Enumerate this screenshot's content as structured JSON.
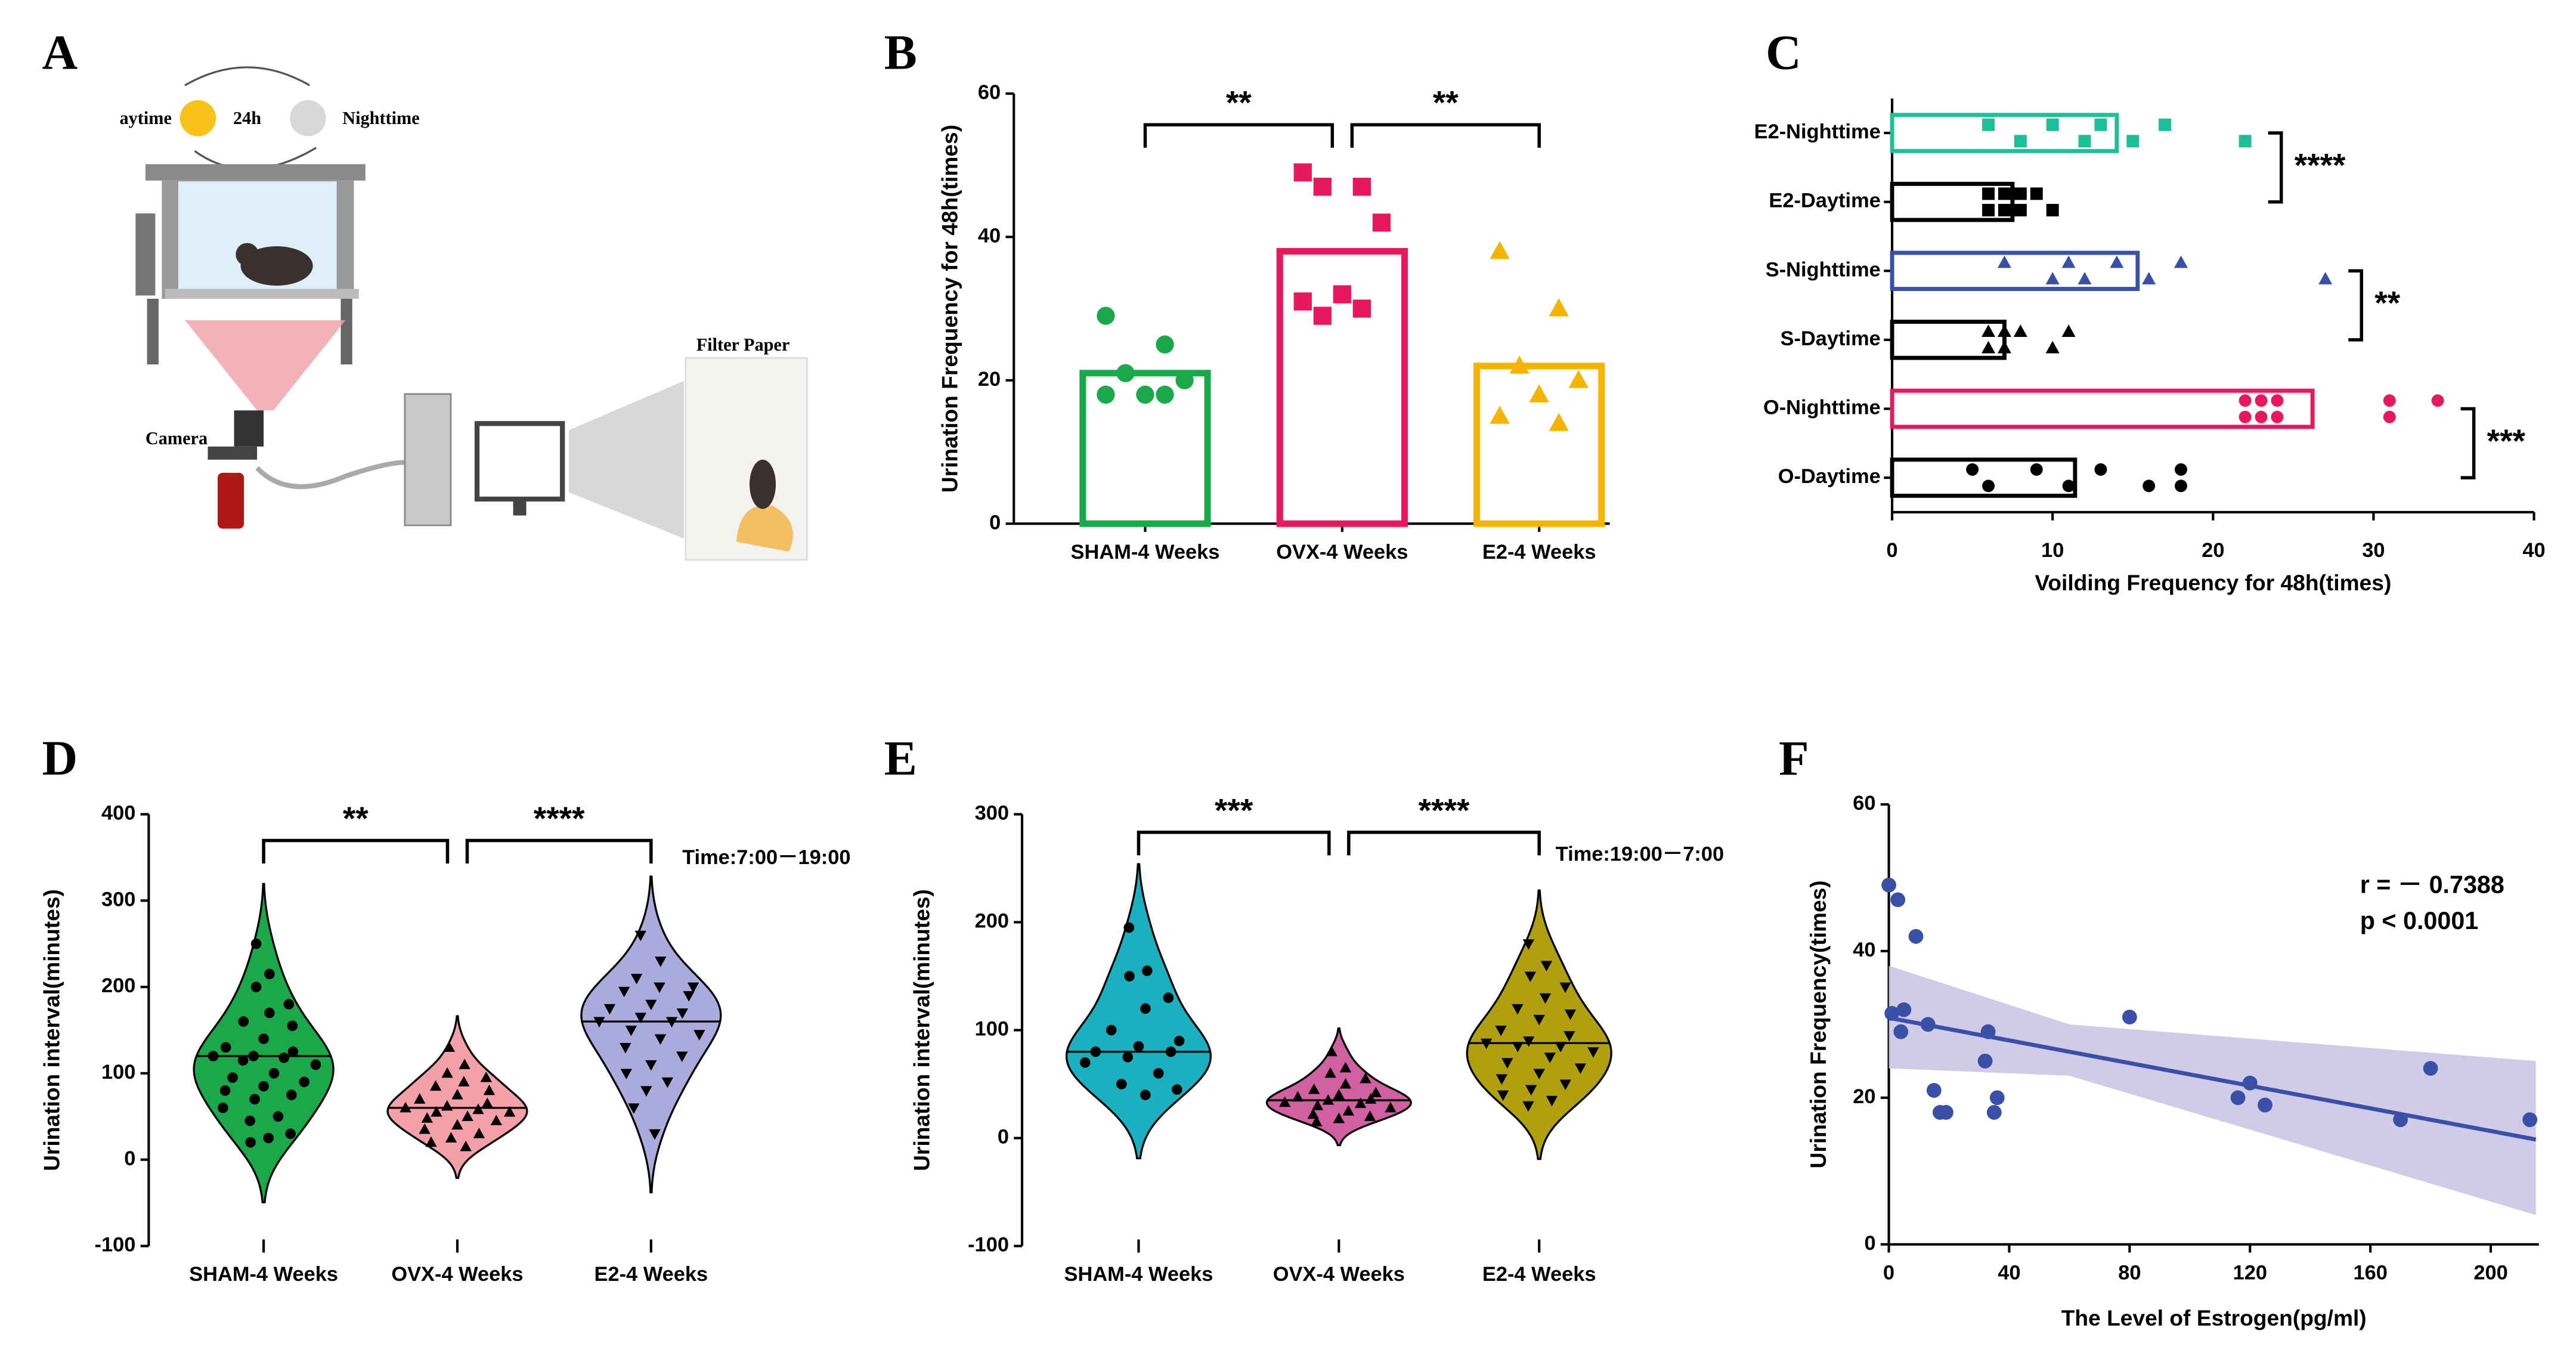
{
  "panel_labels": [
    "A",
    "B",
    "C",
    "D",
    "E",
    "F"
  ],
  "diagram": {
    "left_label": "aytime",
    "cycle": "24h",
    "right_label": "Nighttime",
    "camera": "Camera",
    "filter": "Filter Paper"
  },
  "chart_data": [
    {
      "type": "bar",
      "ylabel": "Urination Frequency for 48h(times)",
      "categories": [
        "SHAM-4 Weeks",
        "OVX-4 Weeks",
        "E2-4 Weeks"
      ],
      "values": [
        21,
        38,
        22
      ],
      "points": [
        [
          29,
          25,
          21,
          20,
          18,
          18,
          18
        ],
        [
          49,
          47,
          47,
          42,
          32,
          31,
          30,
          29
        ],
        [
          38,
          30,
          22,
          20,
          18,
          15,
          14
        ]
      ],
      "colors": [
        "#1aa84a",
        "#e8185e",
        "#f5b400"
      ],
      "markers": [
        "circle",
        "square",
        "triangle"
      ],
      "ylim": [
        0,
        60
      ],
      "yticks": [
        0,
        20,
        40,
        60
      ],
      "significance": [
        "**",
        "**"
      ]
    },
    {
      "type": "hbar",
      "xlabel": "Voilding Frequency for 48h(times)",
      "categories": [
        "E2-Nighttime",
        "E2-Daytime",
        "S-Nighttime",
        "S-Daytime",
        "O-Nighttime",
        "O-Daytime"
      ],
      "values": [
        14,
        7.5,
        15.3,
        7,
        26.2,
        11.4
      ],
      "points": [
        [
          6,
          8,
          10,
          12,
          13,
          15,
          17,
          22
        ],
        [
          6,
          6,
          7,
          7,
          8,
          8,
          9,
          10
        ],
        [
          7,
          10,
          11,
          12,
          14,
          16,
          18,
          27
        ],
        [
          6,
          6,
          7,
          7,
          8,
          10,
          11
        ],
        [
          22,
          22,
          23,
          23,
          24,
          24,
          31,
          31,
          34
        ],
        [
          5,
          6,
          9,
          11,
          13,
          16,
          18,
          18
        ]
      ],
      "colors": [
        "#1dbf9a",
        "#000000",
        "#3a4fa8",
        "#000000",
        "#e8185e",
        "#000000"
      ],
      "markers": [
        "square",
        "square",
        "triangle",
        "triangle",
        "circle",
        "circle"
      ],
      "xlim": [
        0,
        40
      ],
      "xticks": [
        0,
        10,
        20,
        30,
        40
      ],
      "significance": [
        "****",
        "**",
        "***"
      ]
    },
    {
      "type": "violin",
      "ylabel": "Urination interval(minutes)",
      "categories": [
        "SHAM-4 Weeks",
        "OVX-4 Weeks",
        "E2-4 Weeks"
      ],
      "points": [
        [
          250,
          215,
          200,
          180,
          170,
          160,
          155,
          140,
          130,
          125,
          120,
          120,
          118,
          115,
          110,
          100,
          95,
          90,
          85,
          80,
          75,
          70,
          60,
          50,
          45,
          30,
          25,
          20
        ],
        [
          130,
          110,
          100,
          95,
          90,
          85,
          80,
          75,
          70,
          65,
          62,
          60,
          58,
          55,
          55,
          50,
          48,
          45,
          40,
          35,
          30,
          25,
          20,
          15
        ],
        [
          260,
          230,
          210,
          200,
          200,
          195,
          190,
          180,
          175,
          170,
          165,
          160,
          160,
          150,
          145,
          140,
          130,
          120,
          110,
          100,
          90,
          80,
          60,
          30
        ]
      ],
      "medians": [
        120,
        60,
        160
      ],
      "colors": [
        "#1aa84a",
        "#f4a0a8",
        "#aaaadd"
      ],
      "markers": [
        "circle",
        "triangle",
        "triangle-down"
      ],
      "ylim": [
        -100,
        400
      ],
      "yticks": [
        -100,
        0,
        100,
        200,
        300,
        400
      ],
      "significance": [
        "**",
        "****"
      ],
      "note": "Time:7:00－19:00"
    },
    {
      "type": "violin",
      "ylabel": "Urination interval(minutes)",
      "categories": [
        "SHAM-4 Weeks",
        "OVX-4 Weeks",
        "E2-4 Weeks"
      ],
      "points": [
        [
          195,
          155,
          150,
          130,
          120,
          100,
          90,
          85,
          80,
          80,
          75,
          70,
          60,
          50,
          45,
          40
        ],
        [
          80,
          65,
          60,
          55,
          50,
          45,
          42,
          40,
          38,
          36,
          35,
          33,
          32,
          30,
          28,
          25,
          22,
          20,
          18,
          15
        ],
        [
          180,
          160,
          150,
          140,
          130,
          120,
          115,
          110,
          100,
          95,
          90,
          88,
          85,
          85,
          80,
          75,
          70,
          65,
          60,
          55,
          50,
          45,
          40,
          35,
          30
        ]
      ],
      "medians": [
        80,
        35,
        88
      ],
      "colors": [
        "#1ab0c0",
        "#d060a0",
        "#b0a010"
      ],
      "markers": [
        "circle",
        "triangle",
        "triangle-down"
      ],
      "ylim": [
        -100,
        300
      ],
      "yticks": [
        -100,
        0,
        100,
        200,
        300
      ],
      "significance": [
        "***",
        "****"
      ],
      "note": "Time:19:00－7:00"
    },
    {
      "type": "scatter",
      "xlabel": "The Level of Estrogen(pg/ml)",
      "ylabel": "Urination Frequency(times)",
      "x": [
        0,
        3,
        9,
        1,
        4,
        5,
        13,
        15,
        17,
        19,
        33,
        32,
        36,
        35,
        80,
        116,
        120,
        125,
        170,
        180,
        213
      ],
      "y": [
        49,
        47,
        42,
        31.5,
        29,
        32,
        30,
        21,
        18,
        18,
        29,
        25,
        20,
        18,
        31,
        20,
        22,
        19,
        17,
        24,
        17
      ],
      "color": "#3a4fa8",
      "fit": {
        "x": [
          0,
          215
        ],
        "y": [
          30.9,
          14.3
        ]
      },
      "band": {
        "x": [
          0,
          60,
          215
        ],
        "upper": [
          38,
          30,
          25
        ],
        "lower": [
          24,
          23,
          4
        ],
        "color": "#cbc7e6"
      },
      "xlim": [
        0,
        216
      ],
      "xticks": [
        0,
        40,
        80,
        120,
        160,
        200
      ],
      "ylim": [
        0,
        60
      ],
      "yticks": [
        0,
        20,
        40,
        60
      ],
      "annotations": [
        "r = － 0.7388",
        "p < 0.0001"
      ]
    }
  ]
}
